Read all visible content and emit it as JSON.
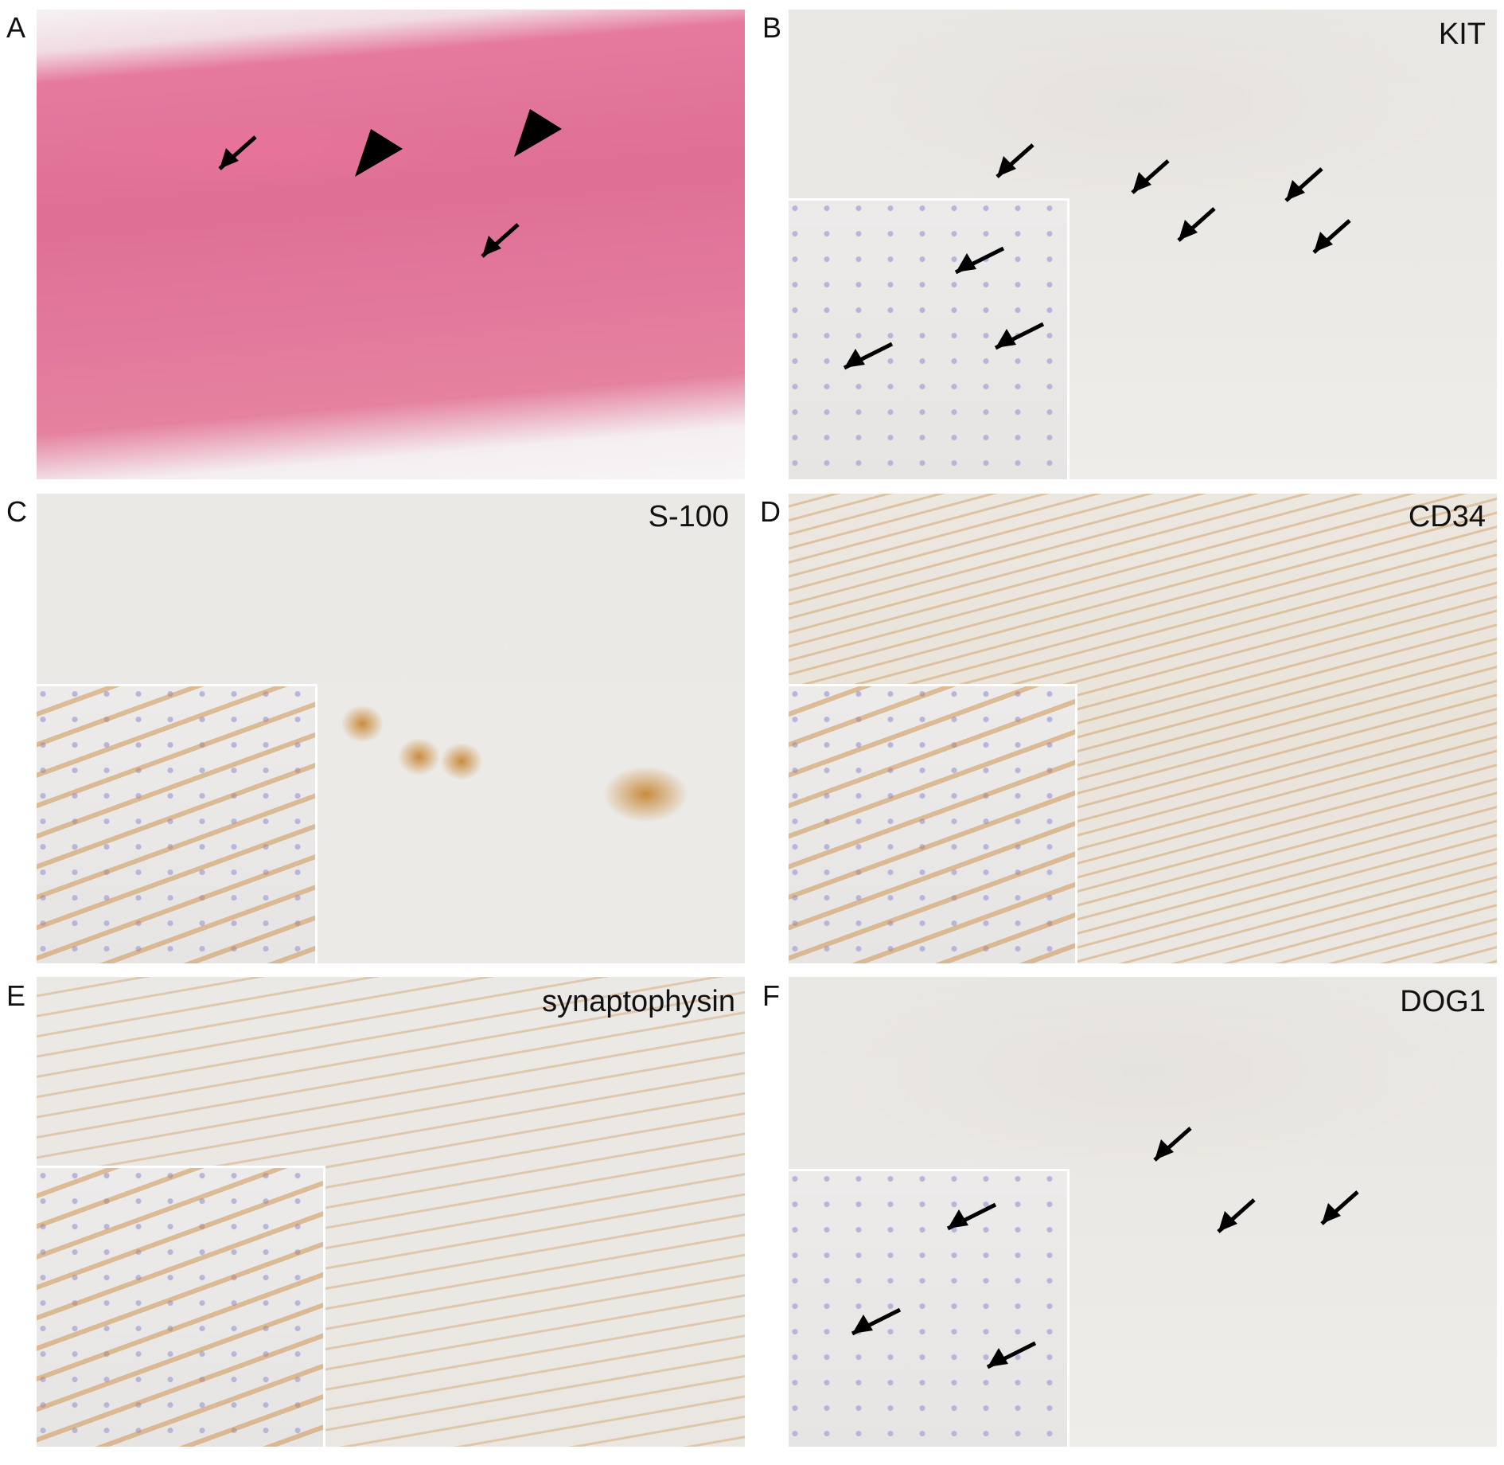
{
  "figure": {
    "panels": [
      {
        "letter": "A",
        "label": ""
      },
      {
        "letter": "B",
        "label": "KIT"
      },
      {
        "letter": "C",
        "label": "S-100"
      },
      {
        "letter": "D",
        "label": "CD34"
      },
      {
        "letter": "E",
        "label": "synaptophysin"
      },
      {
        "letter": "F",
        "label": "DOG1"
      }
    ],
    "colors": {
      "he_stain": "#e2779c",
      "ihc_background": "#ebe9e5",
      "dab_brown": "#c98c3f",
      "arrow": "#000000"
    }
  }
}
